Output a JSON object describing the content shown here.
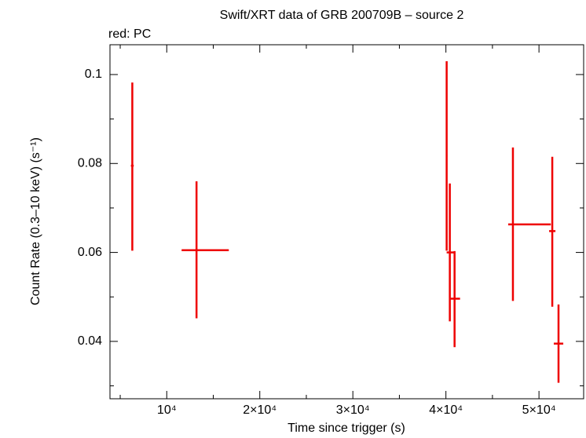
{
  "chart_data": {
    "type": "scatter",
    "title": "Swift/XRT data of GRB 200709B – source 2",
    "xlabel": "Time since trigger (s)",
    "ylabel": "Count Rate (0.3–10 keV) (s⁻¹)",
    "series": [
      {
        "name": "red: PC",
        "color": "#ee0000",
        "x": [
          6300,
          13200,
          40080,
          40420,
          40930,
          47200,
          51430,
          52100
        ],
        "xerr": [
          [
            150,
            150
          ],
          [
            1600,
            3470
          ],
          [
            80,
            80
          ],
          [
            340,
            420
          ],
          [
            420,
            590
          ],
          [
            510,
            4070
          ],
          [
            340,
            340
          ],
          [
            510,
            510
          ]
        ],
        "values": [
          0.0795,
          0.0605,
          0.0818,
          0.06,
          0.0496,
          0.0663,
          0.0648,
          0.0395
        ],
        "yerr": [
          [
            0.0191,
            0.0187
          ],
          [
            0.0153,
            0.0155
          ],
          [
            0.0214,
            0.0212
          ],
          [
            0.0155,
            0.0155
          ],
          [
            0.0109,
            0.0107
          ],
          [
            0.0172,
            0.0173
          ],
          [
            0.017,
            0.0167
          ],
          [
            0.0088,
            0.0088
          ]
        ]
      }
    ],
    "xlim": [
      3900,
      54800
    ],
    "ylim": [
      0.0271,
      0.1067
    ],
    "xticks": [
      {
        "value": 10000,
        "label": "10⁴"
      },
      {
        "value": 20000,
        "label": "2×10⁴"
      },
      {
        "value": 30000,
        "label": "3×10⁴"
      },
      {
        "value": 40000,
        "label": "4×10⁴"
      },
      {
        "value": 50000,
        "label": "5×10⁴"
      }
    ],
    "xminorticks": [
      5000,
      15000,
      25000,
      35000,
      45000
    ],
    "yticks": [
      0.04,
      0.06,
      0.08,
      0.1
    ],
    "yminorticks": [
      0.03,
      0.05,
      0.07,
      0.09
    ]
  }
}
